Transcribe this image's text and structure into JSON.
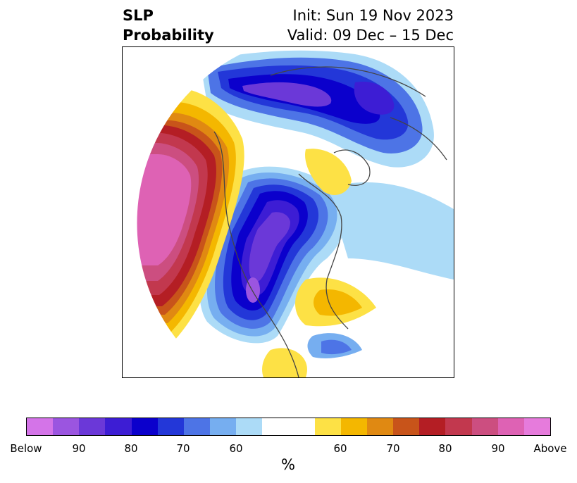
{
  "title": {
    "left_line1": "SLP",
    "left_line2": "Probability",
    "right_line1": "Init: Sun 19 Nov 2023",
    "right_line2": "Valid: 09 Dec – 15 Dec"
  },
  "colorbar": {
    "unit": "%",
    "ticks": [
      "Below",
      "90",
      "80",
      "70",
      "60",
      "60",
      "70",
      "80",
      "90",
      "Above"
    ],
    "below_colors": [
      "#d474e8",
      "#9b55e0",
      "#6b38d8",
      "#3d1dd4",
      "#0b00cc",
      "#2337d8",
      "#4d74e6",
      "#76aef0",
      "#acdbf7"
    ],
    "neutral_color": "#ffffff",
    "above_colors": [
      "#fde145",
      "#f4b700",
      "#e08912",
      "#c8541a",
      "#b41e24",
      "#c2384e",
      "#cc4e80",
      "#de62b4",
      "#e67bdc"
    ]
  }
}
